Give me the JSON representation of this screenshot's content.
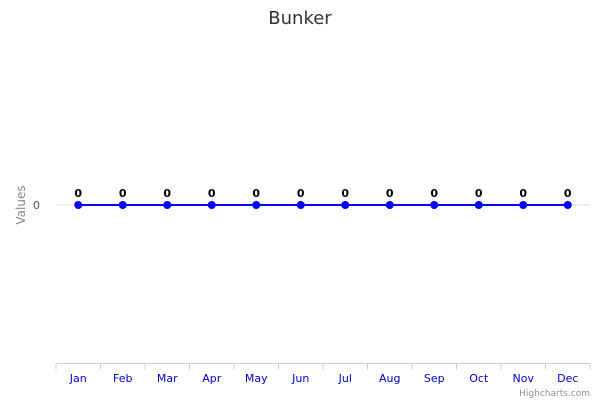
{
  "chart_data": {
    "type": "line",
    "title": "Bunker",
    "xlabel": "",
    "ylabel": "Values",
    "categories": [
      "Jan",
      "Feb",
      "Mar",
      "Apr",
      "May",
      "Jun",
      "Jul",
      "Aug",
      "Sep",
      "Oct",
      "Nov",
      "Dec"
    ],
    "series": [
      {
        "values": [
          0,
          0,
          0,
          0,
          0,
          0,
          0,
          0,
          0,
          0,
          0,
          0
        ],
        "color": "#0000ff"
      }
    ],
    "y_ticks": [
      "0"
    ],
    "data_labels": true,
    "legend": "none",
    "grid": true
  },
  "colors": {
    "series": "#0000ff",
    "xtick_label": "#0000cc",
    "axis": "#c0d0e0",
    "grid": "#dddddd"
  },
  "credits": "Highcharts.com"
}
